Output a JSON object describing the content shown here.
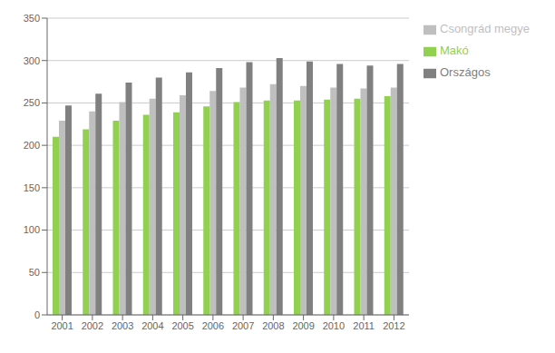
{
  "chart_data": {
    "type": "bar",
    "categories": [
      "2001",
      "2002",
      "2003",
      "2004",
      "2005",
      "2006",
      "2007",
      "2008",
      "2009",
      "2010",
      "2011",
      "2012"
    ],
    "series": [
      {
        "name": "Makó",
        "color": "#92d050",
        "values": [
          210,
          219,
          229,
          236,
          239,
          246,
          251,
          253,
          253,
          254,
          255,
          258
        ]
      },
      {
        "name": "Csongrád megye",
        "color": "#bfbfbf",
        "values": [
          229,
          240,
          251,
          255,
          259,
          264,
          268,
          272,
          270,
          268,
          267,
          268
        ]
      },
      {
        "name": "Országos",
        "color": "#808080",
        "values": [
          247,
          261,
          274,
          280,
          286,
          291,
          298,
          303,
          299,
          296,
          294,
          296
        ]
      }
    ],
    "ylim": [
      0,
      350
    ],
    "yticks": [
      0,
      50,
      100,
      150,
      200,
      250,
      300,
      350
    ],
    "grid": true,
    "legend": "right"
  }
}
